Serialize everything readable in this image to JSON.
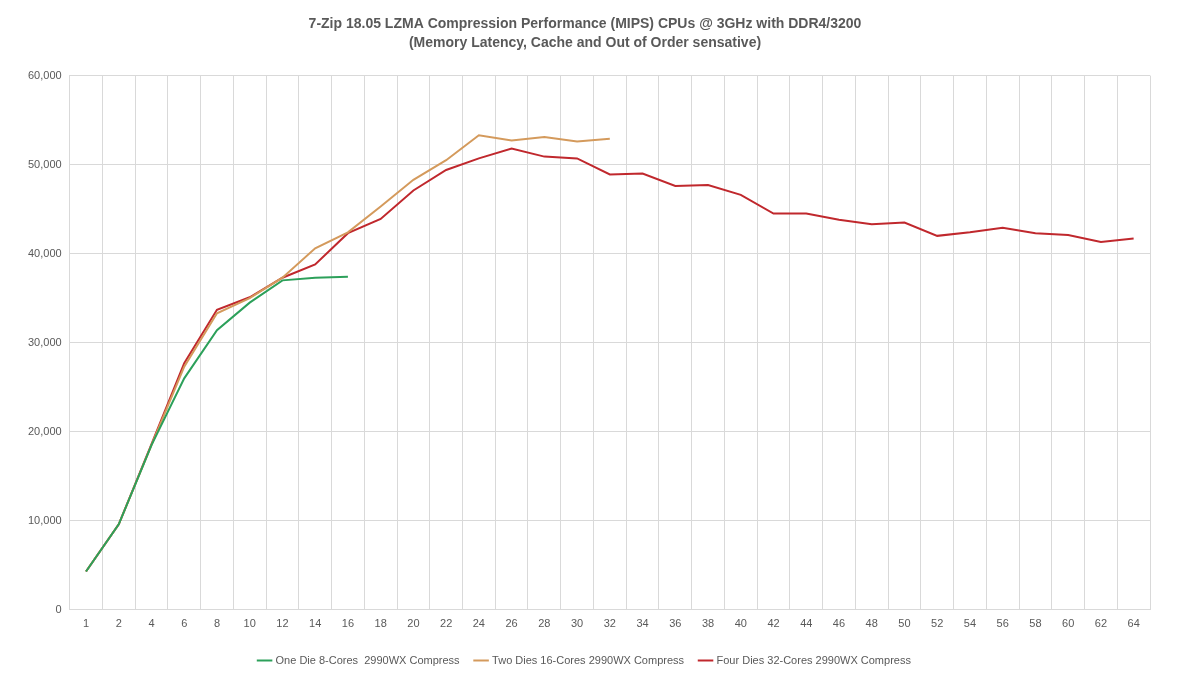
{
  "chart_data": {
    "type": "line",
    "title": "7-Zip 18.05 LZMA Compression Performance (MIPS) CPUs @ 3GHz with DDR4/3200",
    "subtitle": "(Memory Latency, Cache and Out of Order sensative)",
    "categories": [
      "1",
      "2",
      "4",
      "6",
      "8",
      "10",
      "12",
      "14",
      "16",
      "18",
      "20",
      "22",
      "24",
      "26",
      "28",
      "30",
      "32",
      "34",
      "36",
      "38",
      "40",
      "42",
      "44",
      "46",
      "48",
      "50",
      "52",
      "54",
      "56",
      "58",
      "60",
      "62",
      "64"
    ],
    "series": [
      {
        "name": "One Die 8-Cores  2990WX Compress",
        "color": "#2ca05a",
        "values": [
          4300,
          9600,
          18500,
          26000,
          31400,
          34500,
          37000,
          37300,
          37400,
          null,
          null,
          null,
          null,
          null,
          null,
          null,
          null,
          null,
          null,
          null,
          null,
          null,
          null,
          null,
          null,
          null,
          null,
          null,
          null,
          null,
          null,
          null,
          null
        ]
      },
      {
        "name": "Two Dies 16-Cores 2990WX Compress",
        "color": "#d49a5c",
        "values": [
          4300,
          9600,
          18500,
          27300,
          33300,
          35000,
          37300,
          40600,
          42400,
          45300,
          48300,
          50500,
          53300,
          52700,
          53100,
          52600,
          52900,
          null,
          null,
          null,
          null,
          null,
          null,
          null,
          null,
          null,
          null,
          null,
          null,
          null,
          null,
          null,
          null
        ]
      },
      {
        "name": "Four Dies 32-Cores 2990WX Compress",
        "color": "#c0282d",
        "values": [
          4300,
          9600,
          18600,
          27700,
          33700,
          35100,
          37300,
          38800,
          42300,
          43900,
          47100,
          49400,
          50700,
          51800,
          50900,
          50700,
          48900,
          49000,
          47600,
          47700,
          46600,
          44500,
          44500,
          43800,
          43300,
          43500,
          42000,
          42400,
          42900,
          42300,
          42100,
          41300,
          41700
        ]
      }
    ],
    "ylim": [
      0,
      60000
    ],
    "yticks": [
      0,
      {
        "value": 10000,
        "label": "10,000"
      },
      {
        "value": 20000,
        "label": "20,000"
      },
      {
        "value": 30000,
        "label": "30,000"
      },
      {
        "value": 40000,
        "label": "40,000"
      },
      {
        "value": 50000,
        "label": "50,000"
      },
      {
        "value": 60000,
        "label": "60,000"
      }
    ],
    "grid": true,
    "legend": "bottom"
  }
}
